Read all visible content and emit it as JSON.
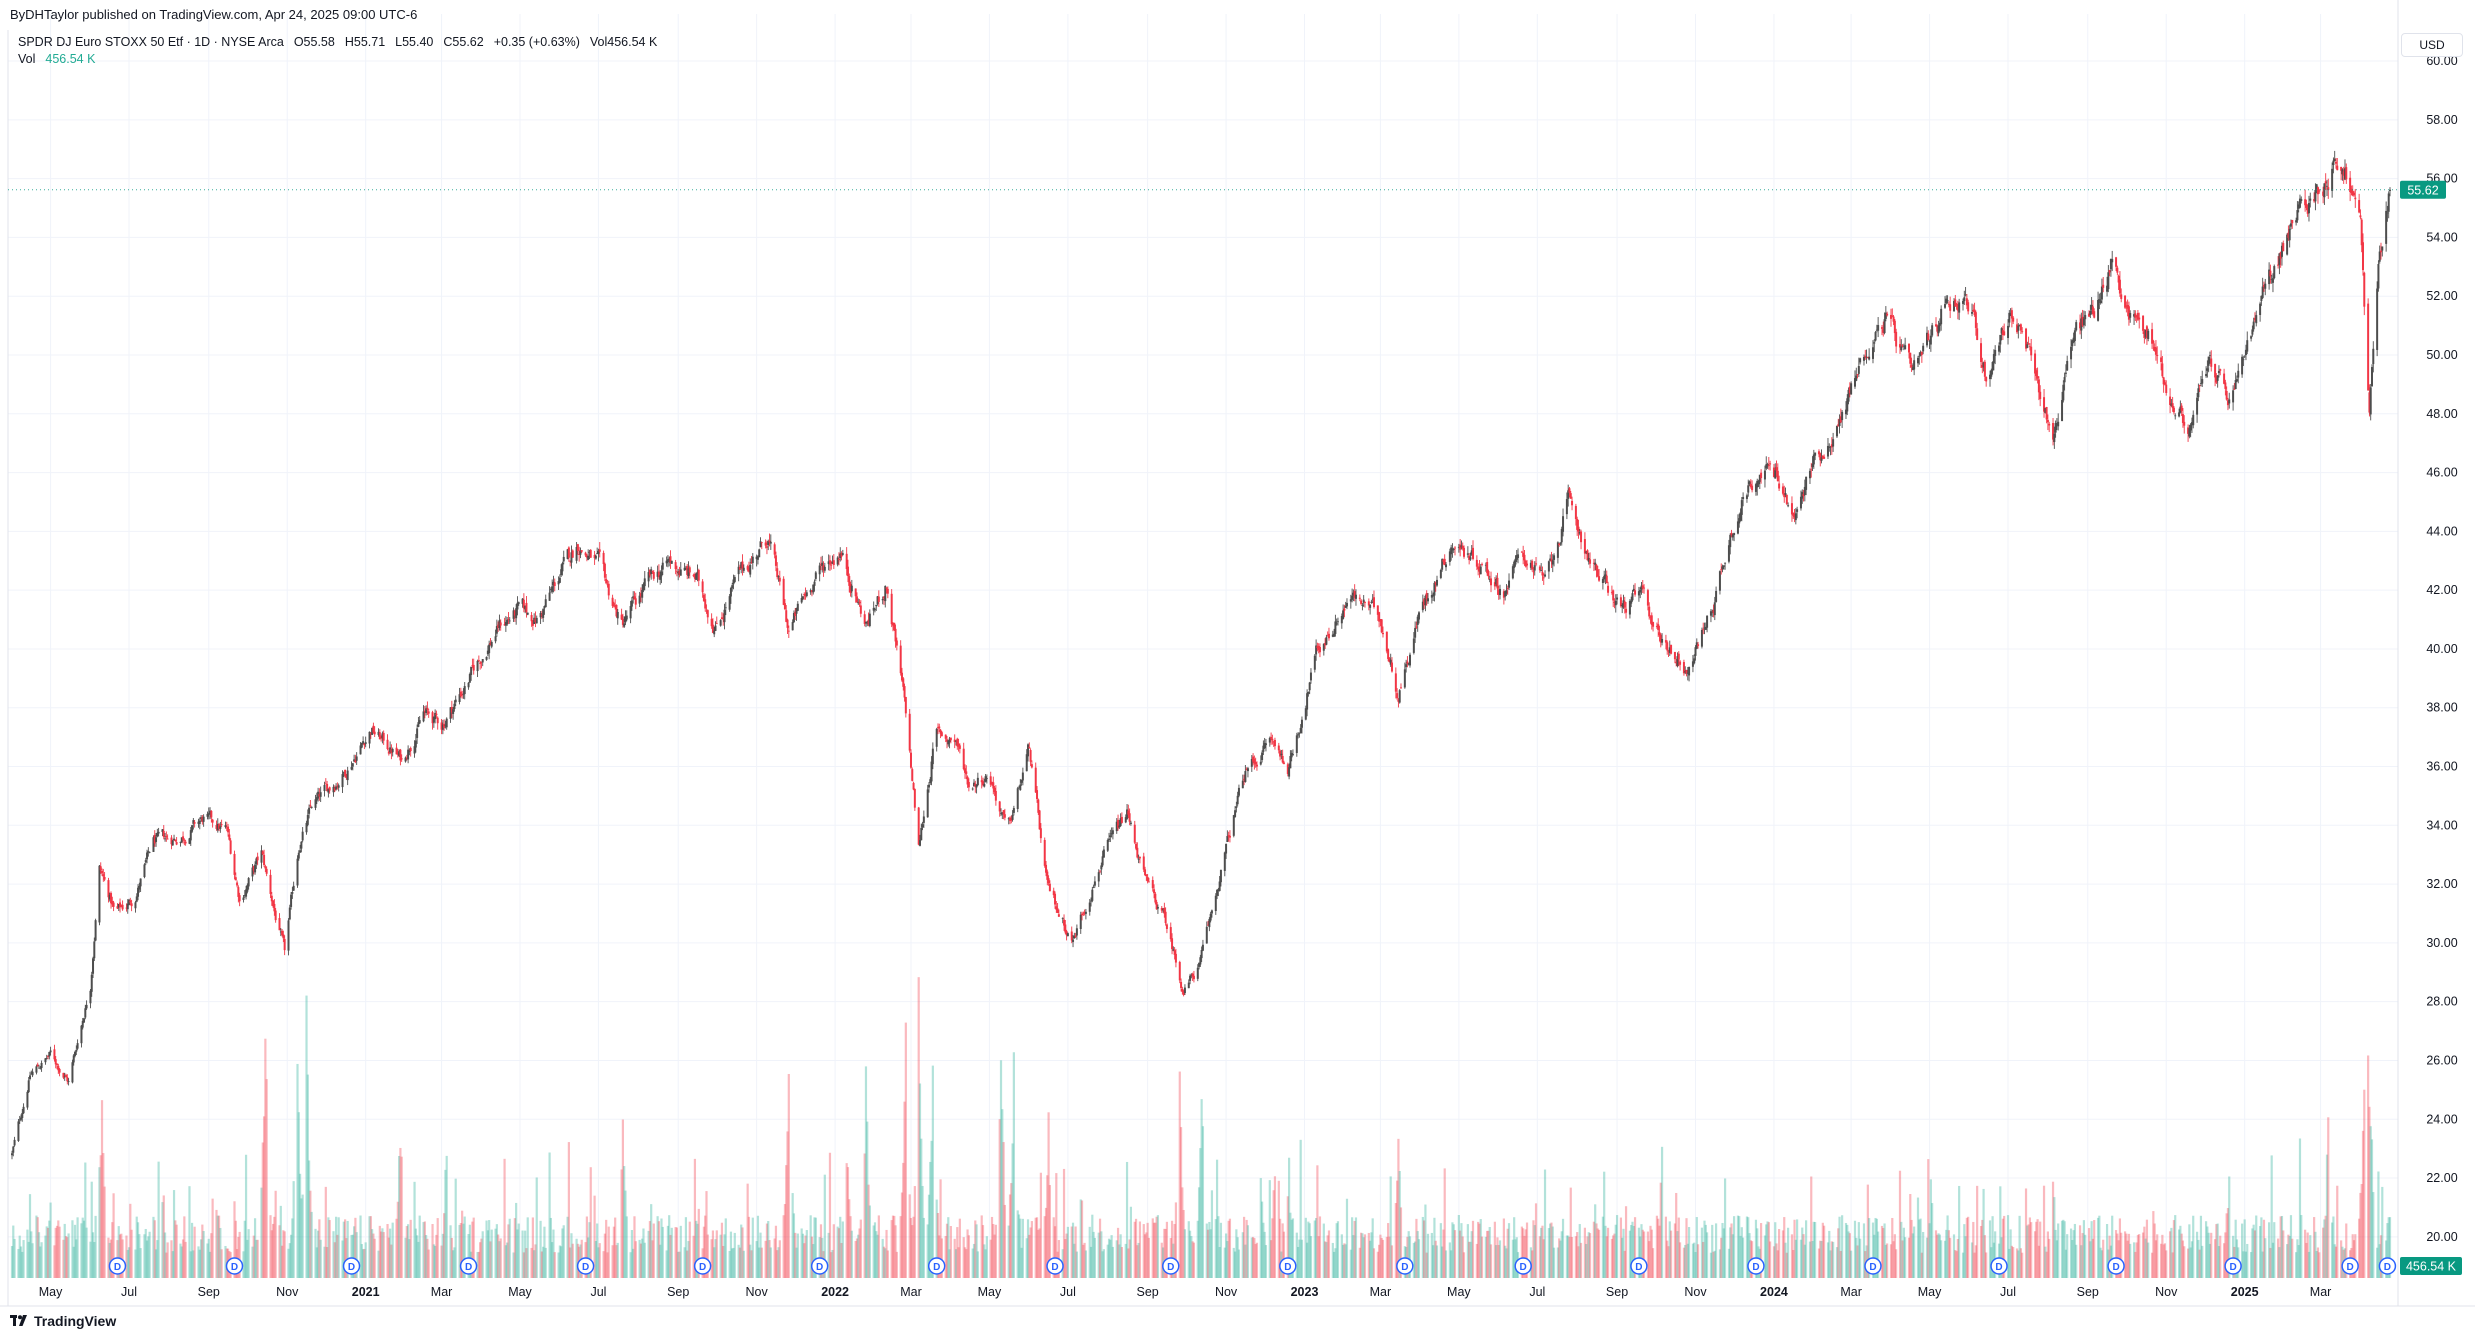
{
  "header": {
    "published_by": "ByDHTaylor published on TradingView.com, Apr 24, 2025 09:00 UTC-6",
    "symbol_line": "SPDR DJ Euro STOXX 50 Etf · 1D · NYSE Arca",
    "ohlc": {
      "open": "O55.58",
      "high": "H55.71",
      "low": "L55.40",
      "close": "C55.62",
      "change": "+0.35 (+0.63%)",
      "volume": "Vol456.54 K"
    },
    "vol_label": "Vol",
    "vol_value": "456.54 K"
  },
  "price_axis": {
    "currency": "USD",
    "last_price_label": "55.62",
    "last_volume_label": "456.54 K"
  },
  "footer": {
    "brand": "TradingView"
  },
  "colors": {
    "up": "#22ab94",
    "down": "#f23645",
    "candle_up": "#4d4d4d",
    "candle_down": "#f23645",
    "badge": "#089981",
    "dividend": "#2962ff"
  },
  "dividend_marker": "D",
  "chart_data": {
    "type": "candlestick",
    "title": "SPDR DJ Euro STOXX 50 Etf · 1D · NYSE Arca",
    "ylim": [
      18.6,
      61.6
    ],
    "y_ticks": [
      "60.00",
      "58.00",
      "56.00",
      "54.00",
      "52.00",
      "50.00",
      "48.00",
      "46.00",
      "44.00",
      "42.00",
      "40.00",
      "38.00",
      "36.00",
      "34.00",
      "32.00",
      "30.00",
      "28.00",
      "26.00",
      "24.00",
      "22.00",
      "20.00"
    ],
    "x_ticks": [
      "May",
      "Jul",
      "Sep",
      "Nov",
      "2021",
      "Mar",
      "May",
      "Jul",
      "Sep",
      "Nov",
      "2022",
      "Mar",
      "May",
      "Jul",
      "Sep",
      "Nov",
      "2023",
      "Mar",
      "May",
      "Jul",
      "Sep",
      "Nov",
      "2024",
      "Mar",
      "May",
      "Jul",
      "Sep",
      "Nov",
      "2025",
      "Mar"
    ],
    "x_tick_bold": [
      "2021",
      "2022",
      "2023",
      "2024",
      "2025"
    ],
    "x_start": "2020-04-01",
    "x_end": "2025-04-24",
    "last_price": 55.62,
    "price_path": [
      [
        "2020-04-01",
        22.8
      ],
      [
        "2020-04-15",
        25.5
      ],
      [
        "2020-05-01",
        26.2
      ],
      [
        "2020-05-15",
        25.3
      ],
      [
        "2020-06-01",
        28.6
      ],
      [
        "2020-06-08",
        32.6
      ],
      [
        "2020-06-20",
        31.0
      ],
      [
        "2020-07-05",
        31.5
      ],
      [
        "2020-07-20",
        33.4
      ],
      [
        "2020-08-10",
        33.6
      ],
      [
        "2020-08-28",
        34.2
      ],
      [
        "2020-09-15",
        33.8
      ],
      [
        "2020-09-25",
        31.5
      ],
      [
        "2020-10-12",
        33.0
      ],
      [
        "2020-10-30",
        29.6
      ],
      [
        "2020-11-10",
        33.3
      ],
      [
        "2020-11-20",
        34.6
      ],
      [
        "2020-12-15",
        35.8
      ],
      [
        "2021-01-05",
        37.3
      ],
      [
        "2021-01-29",
        36.2
      ],
      [
        "2021-02-15",
        37.8
      ],
      [
        "2021-03-01",
        37.4
      ],
      [
        "2021-03-20",
        38.8
      ],
      [
        "2021-04-15",
        40.8
      ],
      [
        "2021-05-01",
        41.3
      ],
      [
        "2021-05-15",
        41.0
      ],
      [
        "2021-06-01",
        42.5
      ],
      [
        "2021-06-15",
        43.6
      ],
      [
        "2021-07-01",
        42.8
      ],
      [
        "2021-07-19",
        40.8
      ],
      [
        "2021-08-10",
        42.3
      ],
      [
        "2021-08-25",
        42.9
      ],
      [
        "2021-09-15",
        42.4
      ],
      [
        "2021-09-30",
        40.8
      ],
      [
        "2021-10-20",
        42.6
      ],
      [
        "2021-11-10",
        43.8
      ],
      [
        "2021-11-26",
        40.6
      ],
      [
        "2021-12-15",
        42.4
      ],
      [
        "2022-01-05",
        43.4
      ],
      [
        "2022-01-25",
        40.8
      ],
      [
        "2022-02-10",
        42.2
      ],
      [
        "2022-02-25",
        37.8
      ],
      [
        "2022-03-07",
        33.2
      ],
      [
        "2022-03-20",
        37.1
      ],
      [
        "2022-04-05",
        36.9
      ],
      [
        "2022-04-15",
        35.4
      ],
      [
        "2022-05-01",
        35.8
      ],
      [
        "2022-05-15",
        33.7
      ],
      [
        "2022-06-01",
        36.6
      ],
      [
        "2022-06-15",
        31.8
      ],
      [
        "2022-07-05",
        30.1
      ],
      [
        "2022-07-25",
        32.6
      ],
      [
        "2022-08-16",
        34.4
      ],
      [
        "2022-08-31",
        32.0
      ],
      [
        "2022-09-15",
        30.7
      ],
      [
        "2022-09-29",
        28.4
      ],
      [
        "2022-10-12",
        29.3
      ],
      [
        "2022-10-30",
        32.8
      ],
      [
        "2022-11-15",
        35.7
      ],
      [
        "2022-12-05",
        36.9
      ],
      [
        "2022-12-20",
        36.0
      ],
      [
        "2023-01-10",
        39.8
      ],
      [
        "2023-02-05",
        41.8
      ],
      [
        "2023-03-01",
        41.1
      ],
      [
        "2023-03-15",
        38.5
      ],
      [
        "2023-04-01",
        41.3
      ],
      [
        "2023-04-25",
        43.6
      ],
      [
        "2023-05-15",
        43.1
      ],
      [
        "2023-06-05",
        42.0
      ],
      [
        "2023-06-20",
        43.3
      ],
      [
        "2023-07-07",
        42.2
      ],
      [
        "2023-07-25",
        44.9
      ],
      [
        "2023-08-18",
        42.4
      ],
      [
        "2023-09-05",
        41.4
      ],
      [
        "2023-09-20",
        41.8
      ],
      [
        "2023-10-05",
        40.4
      ],
      [
        "2023-10-27",
        39.3
      ],
      [
        "2023-11-15",
        41.6
      ],
      [
        "2023-12-01",
        44.4
      ],
      [
        "2023-12-20",
        46.2
      ],
      [
        "2024-01-05",
        45.8
      ],
      [
        "2024-01-17",
        44.3
      ],
      [
        "2024-02-01",
        46.4
      ],
      [
        "2024-02-20",
        47.6
      ],
      [
        "2024-03-10",
        50.0
      ],
      [
        "2024-03-28",
        51.3
      ],
      [
        "2024-04-18",
        49.1
      ],
      [
        "2024-05-05",
        50.8
      ],
      [
        "2024-05-15",
        52.1
      ],
      [
        "2024-06-01",
        51.8
      ],
      [
        "2024-06-14",
        49.3
      ],
      [
        "2024-07-03",
        51.5
      ],
      [
        "2024-07-20",
        49.6
      ],
      [
        "2024-08-05",
        47.2
      ],
      [
        "2024-08-20",
        50.6
      ],
      [
        "2024-09-05",
        51.5
      ],
      [
        "2024-09-20",
        53.2
      ],
      [
        "2024-10-05",
        51.3
      ],
      [
        "2024-10-20",
        50.7
      ],
      [
        "2024-11-05",
        48.4
      ],
      [
        "2024-11-20",
        47.4
      ],
      [
        "2024-12-05",
        49.9
      ],
      [
        "2024-12-20",
        48.3
      ],
      [
        "2025-01-10",
        51.3
      ],
      [
        "2025-01-30",
        53.6
      ],
      [
        "2025-02-15",
        55.1
      ],
      [
        "2025-03-03",
        55.8
      ],
      [
        "2025-03-12",
        56.6
      ],
      [
        "2025-03-20",
        56.3
      ],
      [
        "2025-04-01",
        54.5
      ],
      [
        "2025-04-08",
        48.2
      ],
      [
        "2025-04-15",
        52.8
      ],
      [
        "2025-04-24",
        55.62
      ]
    ],
    "volume_events": [
      [
        "2020-11-09",
        0.85
      ],
      [
        "2020-11-16",
        0.95
      ],
      [
        "2020-10-15",
        0.9
      ],
      [
        "2020-06-10",
        0.7
      ],
      [
        "2021-01-28",
        0.55
      ],
      [
        "2021-03-05",
        0.5
      ],
      [
        "2021-07-20",
        0.55
      ],
      [
        "2021-11-26",
        0.8
      ],
      [
        "2022-01-10",
        0.5
      ],
      [
        "2022-01-25",
        0.72
      ],
      [
        "2022-02-25",
        0.85
      ],
      [
        "2022-03-07",
        1.0
      ],
      [
        "2022-03-18",
        0.8
      ],
      [
        "2022-05-10",
        0.88
      ],
      [
        "2022-05-20",
        0.78
      ],
      [
        "2022-06-16",
        0.55
      ],
      [
        "2022-09-26",
        0.72
      ],
      [
        "2022-10-13",
        0.68
      ],
      [
        "2022-12-20",
        0.4
      ],
      [
        "2023-03-15",
        0.5
      ],
      [
        "2023-10-06",
        0.45
      ],
      [
        "2024-08-05",
        0.4
      ],
      [
        "2024-12-20",
        0.42
      ],
      [
        "2025-03-07",
        0.55
      ],
      [
        "2025-04-04",
        0.75
      ],
      [
        "2025-04-07",
        0.8
      ],
      [
        "2025-04-09",
        0.62
      ]
    ],
    "dividends": [
      "2020-06-22",
      "2020-09-21",
      "2020-12-21",
      "2021-03-22",
      "2021-06-21",
      "2021-09-20",
      "2021-12-20",
      "2022-03-21",
      "2022-06-21",
      "2022-09-19",
      "2022-12-19",
      "2023-03-20",
      "2023-06-20",
      "2023-09-18",
      "2023-12-18",
      "2024-03-18",
      "2024-06-24",
      "2024-09-23",
      "2024-12-23",
      "2025-03-24",
      "2025-04-22"
    ],
    "grid": true,
    "price_scale_side": "right"
  }
}
